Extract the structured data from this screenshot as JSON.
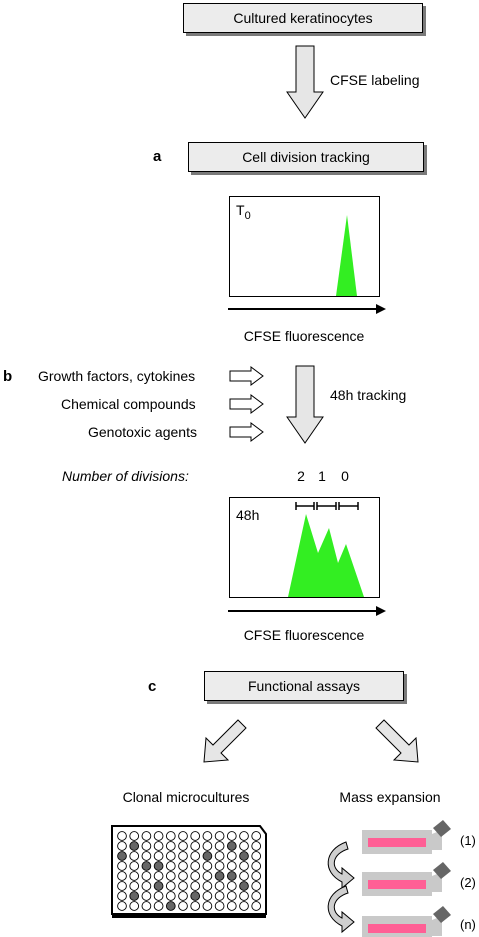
{
  "steps": {
    "top": "Cultured keratinocytes",
    "tracking": "Cell division tracking",
    "assays": "Functional assays"
  },
  "panels": {
    "a": "a",
    "b": "b",
    "c": "c"
  },
  "arrows": {
    "labeling": "CFSE labeling",
    "tracking48": "48h tracking"
  },
  "hist_t0": {
    "label_main": "T",
    "label_sub": "0",
    "axis": "CFSE fluorescence"
  },
  "hist_48": {
    "label": "48h",
    "axis": "CFSE fluorescence",
    "divisions_caption": "Number of divisions:",
    "division_labels": [
      "2",
      "1",
      "0"
    ]
  },
  "treatments": [
    "Growth factors, cytokines",
    "Chemical compounds",
    "Genotoxic agents"
  ],
  "outputs": {
    "clonal": "Clonal microcultures",
    "mass": "Mass expansion"
  },
  "flasks": [
    "(1)",
    "(2)",
    "(n)"
  ],
  "colors": {
    "peak": "#33ee22",
    "flask_band": "#ff5f95",
    "box_fill": "#ececec",
    "shaded_well": "#666666"
  },
  "plate": {
    "rows": 8,
    "cols": 12,
    "shaded_wells": [
      [
        1,
        1
      ],
      [
        2,
        0
      ],
      [
        2,
        7
      ],
      [
        3,
        2
      ],
      [
        3,
        3
      ],
      [
        4,
        8
      ],
      [
        4,
        9
      ],
      [
        5,
        3
      ],
      [
        6,
        1
      ],
      [
        6,
        6
      ],
      [
        7,
        4
      ],
      [
        1,
        9
      ],
      [
        5,
        10
      ],
      [
        2,
        10
      ]
    ]
  }
}
